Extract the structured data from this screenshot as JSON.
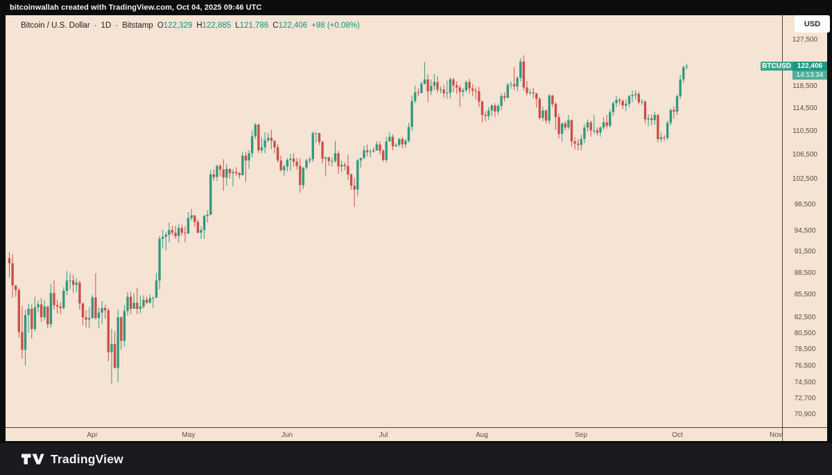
{
  "attribution_bar": {
    "text": "bitcoinwallah created with TradingView.com, Oct 04, 2025 09:46 UTC"
  },
  "header": {
    "symbol_title": "Bitcoin / U.S. Dollar",
    "separator": "·",
    "interval": "1D",
    "exchange": "Bitstamp",
    "ohlc": {
      "open_label": "O",
      "open": "122,329",
      "high_label": "H",
      "high": "122,885",
      "low_label": "L",
      "low": "121,786",
      "close_label": "C",
      "close": "122,406",
      "change": "+98 (+0.08%)"
    }
  },
  "currency_button": {
    "label": "USD"
  },
  "price_scale": {
    "labels": [
      {
        "text": "127,500",
        "value": 127500
      },
      {
        "text": "118,500",
        "value": 118500
      },
      {
        "text": "114,500",
        "value": 114500
      },
      {
        "text": "110,500",
        "value": 110500
      },
      {
        "text": "106,500",
        "value": 106500
      },
      {
        "text": "102,500",
        "value": 102500
      },
      {
        "text": "98,500",
        "value": 98500
      },
      {
        "text": "94,500",
        "value": 94500
      },
      {
        "text": "91,500",
        "value": 91500
      },
      {
        "text": "88,500",
        "value": 88500
      },
      {
        "text": "85,500",
        "value": 85500
      },
      {
        "text": "82,500",
        "value": 82500
      },
      {
        "text": "80,500",
        "value": 80500
      },
      {
        "text": "78,500",
        "value": 78500
      },
      {
        "text": "76,500",
        "value": 76500
      },
      {
        "text": "74,500",
        "value": 74500
      },
      {
        "text": "72,700",
        "value": 72700
      },
      {
        "text": "70,900",
        "value": 70900
      }
    ],
    "last_price_badge": {
      "symbol": "BTCUSD",
      "price": "122,406",
      "countdown": "14:13:34",
      "price_value": 122406
    }
  },
  "time_scale": {
    "labels": [
      {
        "text": "Apr",
        "day_index": 26
      },
      {
        "text": "May",
        "day_index": 56
      },
      {
        "text": "Jun",
        "day_index": 87
      },
      {
        "text": "Jul",
        "day_index": 117
      },
      {
        "text": "Aug",
        "day_index": 148
      },
      {
        "text": "Sep",
        "day_index": 179
      },
      {
        "text": "Oct",
        "day_index": 209
      },
      {
        "text": "Nov",
        "day_index": 240
      }
    ]
  },
  "footer": {
    "brand": "TradingView"
  },
  "colors": {
    "up": "#2f9a82",
    "down": "#cb4f47",
    "background": "#f5e3d4",
    "accent_green": "#089981",
    "badge_green": "#1e9884",
    "axis_text": "#55504a",
    "top_bar": "#0c0d0e",
    "footer_bg": "#191b1f"
  },
  "chart_data": {
    "type": "candlestick",
    "title": "Bitcoin / U.S. Dollar",
    "symbol": "BTCUSD",
    "exchange": "Bitstamp",
    "interval": "1D",
    "scale": "logarithmic",
    "grid": false,
    "legend_position": "none",
    "unit": "USD thousands",
    "start_date": "2025-03-06",
    "end_date": "2025-10-04",
    "y_axis": {
      "top_price": 127500,
      "bottom_price": 70900
    },
    "candle_format": [
      "open",
      "high",
      "low",
      "close"
    ],
    "candles": [
      [
        90.6,
        91.5,
        87.9,
        89.9
      ],
      [
        89.9,
        91.2,
        85.2,
        86.8
      ],
      [
        86.8,
        86.9,
        85.3,
        86.2
      ],
      [
        86.2,
        86.5,
        80.0,
        80.7
      ],
      [
        80.7,
        84.1,
        77.4,
        78.5
      ],
      [
        78.5,
        83.6,
        76.6,
        82.9
      ],
      [
        82.9,
        84.4,
        80.6,
        83.7
      ],
      [
        83.7,
        84.3,
        79.9,
        81.1
      ],
      [
        81.1,
        85.3,
        80.8,
        83.9
      ],
      [
        83.9,
        84.8,
        83.2,
        84.3
      ],
      [
        84.3,
        85.1,
        82.0,
        82.6
      ],
      [
        82.6,
        84.8,
        82.2,
        84.0
      ],
      [
        84.0,
        84.1,
        81.2,
        81.7
      ],
      [
        81.7,
        87.0,
        81.3,
        85.8
      ],
      [
        85.8,
        87.5,
        83.6,
        84.2
      ],
      [
        84.2,
        84.9,
        83.1,
        84.0
      ],
      [
        84.0,
        84.5,
        83.0,
        83.8
      ],
      [
        83.8,
        86.6,
        83.6,
        86.1
      ],
      [
        86.1,
        88.8,
        85.5,
        87.5
      ],
      [
        87.5,
        88.5,
        86.3,
        87.5
      ],
      [
        87.5,
        88.3,
        85.8,
        86.9
      ],
      [
        86.9,
        87.8,
        85.9,
        87.2
      ],
      [
        87.2,
        87.5,
        83.6,
        84.4
      ],
      [
        84.4,
        84.5,
        81.6,
        82.6
      ],
      [
        82.6,
        83.5,
        81.3,
        82.3
      ],
      [
        82.3,
        83.9,
        81.2,
        82.5
      ],
      [
        82.5,
        85.5,
        82.4,
        85.2
      ],
      [
        85.2,
        88.5,
        82.3,
        82.5
      ],
      [
        82.5,
        83.9,
        81.2,
        83.2
      ],
      [
        83.2,
        84.7,
        81.7,
        83.8
      ],
      [
        83.8,
        84.2,
        82.4,
        83.5
      ],
      [
        83.5,
        83.8,
        77.1,
        78.2
      ],
      [
        78.2,
        81.1,
        74.4,
        79.2
      ],
      [
        79.2,
        80.8,
        76.2,
        76.3
      ],
      [
        76.3,
        83.6,
        74.6,
        82.6
      ],
      [
        82.6,
        82.7,
        78.5,
        79.6
      ],
      [
        79.6,
        84.2,
        78.9,
        83.4
      ],
      [
        83.4,
        85.9,
        82.8,
        85.3
      ],
      [
        85.3,
        86.0,
        83.0,
        83.7
      ],
      [
        83.7,
        85.8,
        83.7,
        84.5
      ],
      [
        84.5,
        86.5,
        83.0,
        83.7
      ],
      [
        83.7,
        85.4,
        83.1,
        84.0
      ],
      [
        84.0,
        85.5,
        83.7,
        84.9
      ],
      [
        84.9,
        85.3,
        84.3,
        84.5
      ],
      [
        84.5,
        85.6,
        84.4,
        85.1
      ],
      [
        85.1,
        85.3,
        83.8,
        85.2
      ],
      [
        85.2,
        88.5,
        85.1,
        87.5
      ],
      [
        87.5,
        93.8,
        86.3,
        93.4
      ],
      [
        93.4,
        94.7,
        92.0,
        93.7
      ],
      [
        93.7,
        94.4,
        91.7,
        94.0
      ],
      [
        94.0,
        95.8,
        92.9,
        94.7
      ],
      [
        94.7,
        95.3,
        93.9,
        94.3
      ],
      [
        94.3,
        95.3,
        93.4,
        93.8
      ],
      [
        93.8,
        95.6,
        92.8,
        95.0
      ],
      [
        95.0,
        95.5,
        93.9,
        94.3
      ],
      [
        94.3,
        95.2,
        92.9,
        94.2
      ],
      [
        94.2,
        97.4,
        94.1,
        96.5
      ],
      [
        96.5,
        97.9,
        96.1,
        96.9
      ],
      [
        96.9,
        96.9,
        95.2,
        95.9
      ],
      [
        95.9,
        96.3,
        94.2,
        94.3
      ],
      [
        94.3,
        95.2,
        93.4,
        94.7
      ],
      [
        94.7,
        97.0,
        93.4,
        96.8
      ],
      [
        96.8,
        97.7,
        95.8,
        97.0
      ],
      [
        97.0,
        104.0,
        96.9,
        103.3
      ],
      [
        103.3,
        104.1,
        102.3,
        102.9
      ],
      [
        102.9,
        104.9,
        102.3,
        104.7
      ],
      [
        104.7,
        105.0,
        103.0,
        104.1
      ],
      [
        104.1,
        105.8,
        100.7,
        102.8
      ],
      [
        102.8,
        105.0,
        101.5,
        104.2
      ],
      [
        104.2,
        104.3,
        102.6,
        103.5
      ],
      [
        103.5,
        104.2,
        101.4,
        103.7
      ],
      [
        103.7,
        104.5,
        103.1,
        103.5
      ],
      [
        103.5,
        103.7,
        102.6,
        103.2
      ],
      [
        103.2,
        107.0,
        103.1,
        106.4
      ],
      [
        106.4,
        107.1,
        102.1,
        105.6
      ],
      [
        105.6,
        107.3,
        104.2,
        106.8
      ],
      [
        106.8,
        110.7,
        106.1,
        109.7
      ],
      [
        109.7,
        112.0,
        109.2,
        111.7
      ],
      [
        111.7,
        111.9,
        106.8,
        107.3
      ],
      [
        107.3,
        109.5,
        106.9,
        107.8
      ],
      [
        107.8,
        110.4,
        106.8,
        109.0
      ],
      [
        109.0,
        110.3,
        108.6,
        109.4
      ],
      [
        109.4,
        110.8,
        107.5,
        108.9
      ],
      [
        108.9,
        109.0,
        106.8,
        107.8
      ],
      [
        107.8,
        108.3,
        105.3,
        105.6
      ],
      [
        105.6,
        106.4,
        103.8,
        104.0
      ],
      [
        104.0,
        104.9,
        103.1,
        104.6
      ],
      [
        104.6,
        106.0,
        103.8,
        105.7
      ],
      [
        105.7,
        106.7,
        103.9,
        105.9
      ],
      [
        105.9,
        106.8,
        104.6,
        105.4
      ],
      [
        105.4,
        106.0,
        104.1,
        104.7
      ],
      [
        104.7,
        105.9,
        100.4,
        101.6
      ],
      [
        101.6,
        104.5,
        101.0,
        104.4
      ],
      [
        104.4,
        105.9,
        104.1,
        105.6
      ],
      [
        105.6,
        106.2,
        105.1,
        105.8
      ],
      [
        105.8,
        110.5,
        105.4,
        110.2
      ],
      [
        110.2,
        110.4,
        108.6,
        110.2
      ],
      [
        110.2,
        110.3,
        108.2,
        108.7
      ],
      [
        108.7,
        108.9,
        105.1,
        105.9
      ],
      [
        105.9,
        106.2,
        103.0,
        106.1
      ],
      [
        106.1,
        106.2,
        104.7,
        105.5
      ],
      [
        105.5,
        106.1,
        104.6,
        105.5
      ],
      [
        105.5,
        108.9,
        105.2,
        106.8
      ],
      [
        106.8,
        107.2,
        103.4,
        104.6
      ],
      [
        104.6,
        105.6,
        103.7,
        104.9
      ],
      [
        104.9,
        105.3,
        104.0,
        104.7
      ],
      [
        104.7,
        106.5,
        102.4,
        103.3
      ],
      [
        103.3,
        103.5,
        100.9,
        101.5
      ],
      [
        101.5,
        102.8,
        98.2,
        100.9
      ],
      [
        100.9,
        105.8,
        99.8,
        105.6
      ],
      [
        105.6,
        106.1,
        104.4,
        106.0
      ],
      [
        106.0,
        108.0,
        105.8,
        107.3
      ],
      [
        107.3,
        108.3,
        106.3,
        107.0
      ],
      [
        107.0,
        107.5,
        106.1,
        107.1
      ],
      [
        107.1,
        107.8,
        106.9,
        107.3
      ],
      [
        107.3,
        108.8,
        107.2,
        108.3
      ],
      [
        108.3,
        108.8,
        106.6,
        107.2
      ],
      [
        107.2,
        107.5,
        105.4,
        105.7
      ],
      [
        105.7,
        109.6,
        105.3,
        108.8
      ],
      [
        108.8,
        110.3,
        108.8,
        109.6
      ],
      [
        109.6,
        110.0,
        107.3,
        108.0
      ],
      [
        108.0,
        108.5,
        107.8,
        108.2
      ],
      [
        108.2,
        109.4,
        107.9,
        109.2
      ],
      [
        109.2,
        109.6,
        107.6,
        108.3
      ],
      [
        108.3,
        109.2,
        107.7,
        108.9
      ],
      [
        108.9,
        112.0,
        108.6,
        111.3
      ],
      [
        111.3,
        116.9,
        110.6,
        115.9
      ],
      [
        115.9,
        118.8,
        115.5,
        117.5
      ],
      [
        117.5,
        118.2,
        116.8,
        117.4
      ],
      [
        117.4,
        119.5,
        117.3,
        119.1
      ],
      [
        119.1,
        123.2,
        118.9,
        119.9
      ],
      [
        119.9,
        120.9,
        115.7,
        117.7
      ],
      [
        117.7,
        119.9,
        117.0,
        118.7
      ],
      [
        118.7,
        120.9,
        117.9,
        119.4
      ],
      [
        119.4,
        120.5,
        117.4,
        118.0
      ],
      [
        118.0,
        118.6,
        117.3,
        118.0
      ],
      [
        118.0,
        118.9,
        116.5,
        117.3
      ],
      [
        117.3,
        119.7,
        116.3,
        117.4
      ],
      [
        117.4,
        120.3,
        116.4,
        119.9
      ],
      [
        119.9,
        120.2,
        117.5,
        118.8
      ],
      [
        118.8,
        119.5,
        117.2,
        118.4
      ],
      [
        118.4,
        118.8,
        114.8,
        117.6
      ],
      [
        117.6,
        118.3,
        116.7,
        117.9
      ],
      [
        117.9,
        119.7,
        117.5,
        119.4
      ],
      [
        119.4,
        120.0,
        117.3,
        118.2
      ],
      [
        118.2,
        119.0,
        116.8,
        117.8
      ],
      [
        117.8,
        118.4,
        116.2,
        117.7
      ],
      [
        117.7,
        118.5,
        114.8,
        115.8
      ],
      [
        115.8,
        116.0,
        112.1,
        113.4
      ],
      [
        113.4,
        114.0,
        112.3,
        113.2
      ],
      [
        113.2,
        114.8,
        112.5,
        114.2
      ],
      [
        114.2,
        115.3,
        113.2,
        115.1
      ],
      [
        115.1,
        115.5,
        113.0,
        114.0
      ],
      [
        114.0,
        115.4,
        113.4,
        115.0
      ],
      [
        115.0,
        117.3,
        114.3,
        116.8
      ],
      [
        116.8,
        117.5,
        115.8,
        116.5
      ],
      [
        116.5,
        119.3,
        116.4,
        118.9
      ],
      [
        118.9,
        119.5,
        118.2,
        119.0
      ],
      [
        119.0,
        122.2,
        117.9,
        118.6
      ],
      [
        118.6,
        120.5,
        117.7,
        120.2
      ],
      [
        120.2,
        124.0,
        119.5,
        123.3
      ],
      [
        123.3,
        124.5,
        117.8,
        118.4
      ],
      [
        118.4,
        119.6,
        116.9,
        117.4
      ],
      [
        117.4,
        118.1,
        117.0,
        117.5
      ],
      [
        117.5,
        118.3,
        116.5,
        117.3
      ],
      [
        117.3,
        117.4,
        114.7,
        116.3
      ],
      [
        116.3,
        116.6,
        112.6,
        112.9
      ],
      [
        112.9,
        114.9,
        112.3,
        114.2
      ],
      [
        114.2,
        114.4,
        111.9,
        112.4
      ],
      [
        112.4,
        117.2,
        111.8,
        116.9
      ],
      [
        116.9,
        117.0,
        114.8,
        115.4
      ],
      [
        115.4,
        115.7,
        110.8,
        113.0
      ],
      [
        113.0,
        113.6,
        109.3,
        110.1
      ],
      [
        110.1,
        112.1,
        108.7,
        111.9
      ],
      [
        111.9,
        112.3,
        110.7,
        111.2
      ],
      [
        111.2,
        113.4,
        110.9,
        112.5
      ],
      [
        112.5,
        112.6,
        107.9,
        108.8
      ],
      [
        108.8,
        109.5,
        107.4,
        108.4
      ],
      [
        108.4,
        109.2,
        107.3,
        108.2
      ],
      [
        108.2,
        109.9,
        107.3,
        109.2
      ],
      [
        109.2,
        111.8,
        108.5,
        111.2
      ],
      [
        111.2,
        112.6,
        110.5,
        112.1
      ],
      [
        112.1,
        112.4,
        109.6,
        110.7
      ],
      [
        110.7,
        113.4,
        110.1,
        110.7
      ],
      [
        110.7,
        111.2,
        109.8,
        110.3
      ],
      [
        110.3,
        111.4,
        109.6,
        111.2
      ],
      [
        111.2,
        113.0,
        110.8,
        112.1
      ],
      [
        112.1,
        113.4,
        111.0,
        111.5
      ],
      [
        111.5,
        114.3,
        111.2,
        113.9
      ],
      [
        113.9,
        115.8,
        113.3,
        115.5
      ],
      [
        115.5,
        116.8,
        114.8,
        116.1
      ],
      [
        116.1,
        116.5,
        115.2,
        115.9
      ],
      [
        115.9,
        116.2,
        114.5,
        115.1
      ],
      [
        115.1,
        116.2,
        114.1,
        115.4
      ],
      [
        115.4,
        117.0,
        114.8,
        116.8
      ],
      [
        116.8,
        117.8,
        115.7,
        117.0
      ],
      [
        117.0,
        117.9,
        116.2,
        117.2
      ],
      [
        117.2,
        117.6,
        115.3,
        115.7
      ],
      [
        115.7,
        116.3,
        115.2,
        115.8
      ],
      [
        115.8,
        116.0,
        111.9,
        112.6
      ],
      [
        112.6,
        113.5,
        111.4,
        112.8
      ],
      [
        112.8,
        113.5,
        111.6,
        112.5
      ],
      [
        112.5,
        114.0,
        111.7,
        113.4
      ],
      [
        113.4,
        113.5,
        108.7,
        109.2
      ],
      [
        109.2,
        110.4,
        108.7,
        109.5
      ],
      [
        109.5,
        109.9,
        108.9,
        109.4
      ],
      [
        109.4,
        112.4,
        109.0,
        112.0
      ],
      [
        112.0,
        114.5,
        111.6,
        114.3
      ],
      [
        114.3,
        114.9,
        112.8,
        114.0
      ],
      [
        114.0,
        117.1,
        113.4,
        116.8
      ],
      [
        116.8,
        120.8,
        116.3,
        119.9
      ],
      [
        119.9,
        122.5,
        119.2,
        122.2
      ],
      [
        122.329,
        122.885,
        121.786,
        122.406
      ]
    ]
  }
}
